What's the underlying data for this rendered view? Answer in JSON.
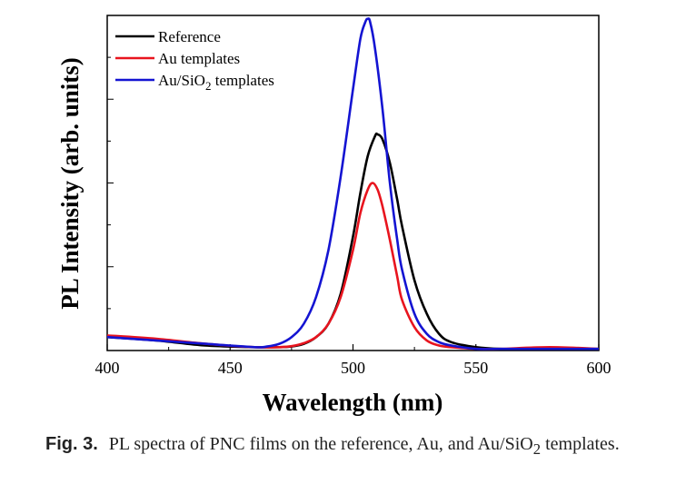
{
  "chart_data": {
    "type": "line",
    "xlabel": "Wavelength (nm)",
    "ylabel": "PL Intensity (arb. units)",
    "xlim": [
      400,
      600
    ],
    "ylim": [
      0,
      1.0
    ],
    "x_ticks": [
      400,
      450,
      500,
      550,
      600
    ],
    "y_ticks_labeled": false,
    "grid": false,
    "legend_placement": "top-left",
    "series": [
      {
        "name": "Reference",
        "color": "#000000",
        "x": [
          400,
          420,
          440,
          460,
          470,
          475,
          480,
          485,
          490,
          495,
          500,
          503,
          506,
          509,
          510,
          512,
          515,
          518,
          520,
          525,
          530,
          535,
          540,
          550,
          560,
          580,
          600
        ],
        "y": [
          0.04,
          0.03,
          0.015,
          0.01,
          0.01,
          0.012,
          0.02,
          0.04,
          0.08,
          0.17,
          0.34,
          0.47,
          0.58,
          0.64,
          0.645,
          0.63,
          0.56,
          0.45,
          0.37,
          0.21,
          0.11,
          0.05,
          0.025,
          0.01,
          0.005,
          0.005,
          0.005
        ]
      },
      {
        "name": "Au templates",
        "color": "#e8141e",
        "x": [
          400,
          420,
          440,
          460,
          470,
          475,
          480,
          485,
          490,
          495,
          500,
          503,
          506,
          508,
          510,
          512,
          515,
          518,
          520,
          525,
          530,
          535,
          540,
          550,
          560,
          580,
          600
        ],
        "y": [
          0.045,
          0.035,
          0.02,
          0.01,
          0.01,
          0.013,
          0.022,
          0.04,
          0.08,
          0.16,
          0.3,
          0.41,
          0.48,
          0.5,
          0.48,
          0.43,
          0.33,
          0.22,
          0.15,
          0.07,
          0.03,
          0.015,
          0.01,
          0.005,
          0.005,
          0.01,
          0.005
        ]
      },
      {
        "name": "Au/SiO2 templates",
        "color": "#1414d2",
        "x": [
          400,
          420,
          440,
          460,
          465,
          470,
          475,
          480,
          485,
          490,
          495,
          500,
          503,
          505,
          506,
          507,
          509,
          512,
          515,
          518,
          520,
          525,
          530,
          535,
          540,
          550,
          560,
          580,
          600
        ],
        "y": [
          0.04,
          0.03,
          0.02,
          0.01,
          0.012,
          0.02,
          0.04,
          0.08,
          0.16,
          0.3,
          0.52,
          0.78,
          0.93,
          0.98,
          0.99,
          0.98,
          0.9,
          0.72,
          0.5,
          0.33,
          0.24,
          0.11,
          0.05,
          0.025,
          0.015,
          0.005,
          0.005,
          0.005,
          0.005
        ]
      }
    ]
  },
  "legend": {
    "items": [
      {
        "text": "Reference",
        "color": "#000000"
      },
      {
        "text": "Au templates",
        "color": "#e8141e"
      },
      {
        "text_main": "Au/SiO",
        "text_sub": "2",
        "text_tail": " templates",
        "color": "#1414d2"
      }
    ]
  },
  "caption": {
    "label": "Fig. 3.",
    "text_a": "PL spectra of PNC films on the reference, Au, and Au/SiO",
    "text_sub": "2",
    "text_b": " templates."
  }
}
